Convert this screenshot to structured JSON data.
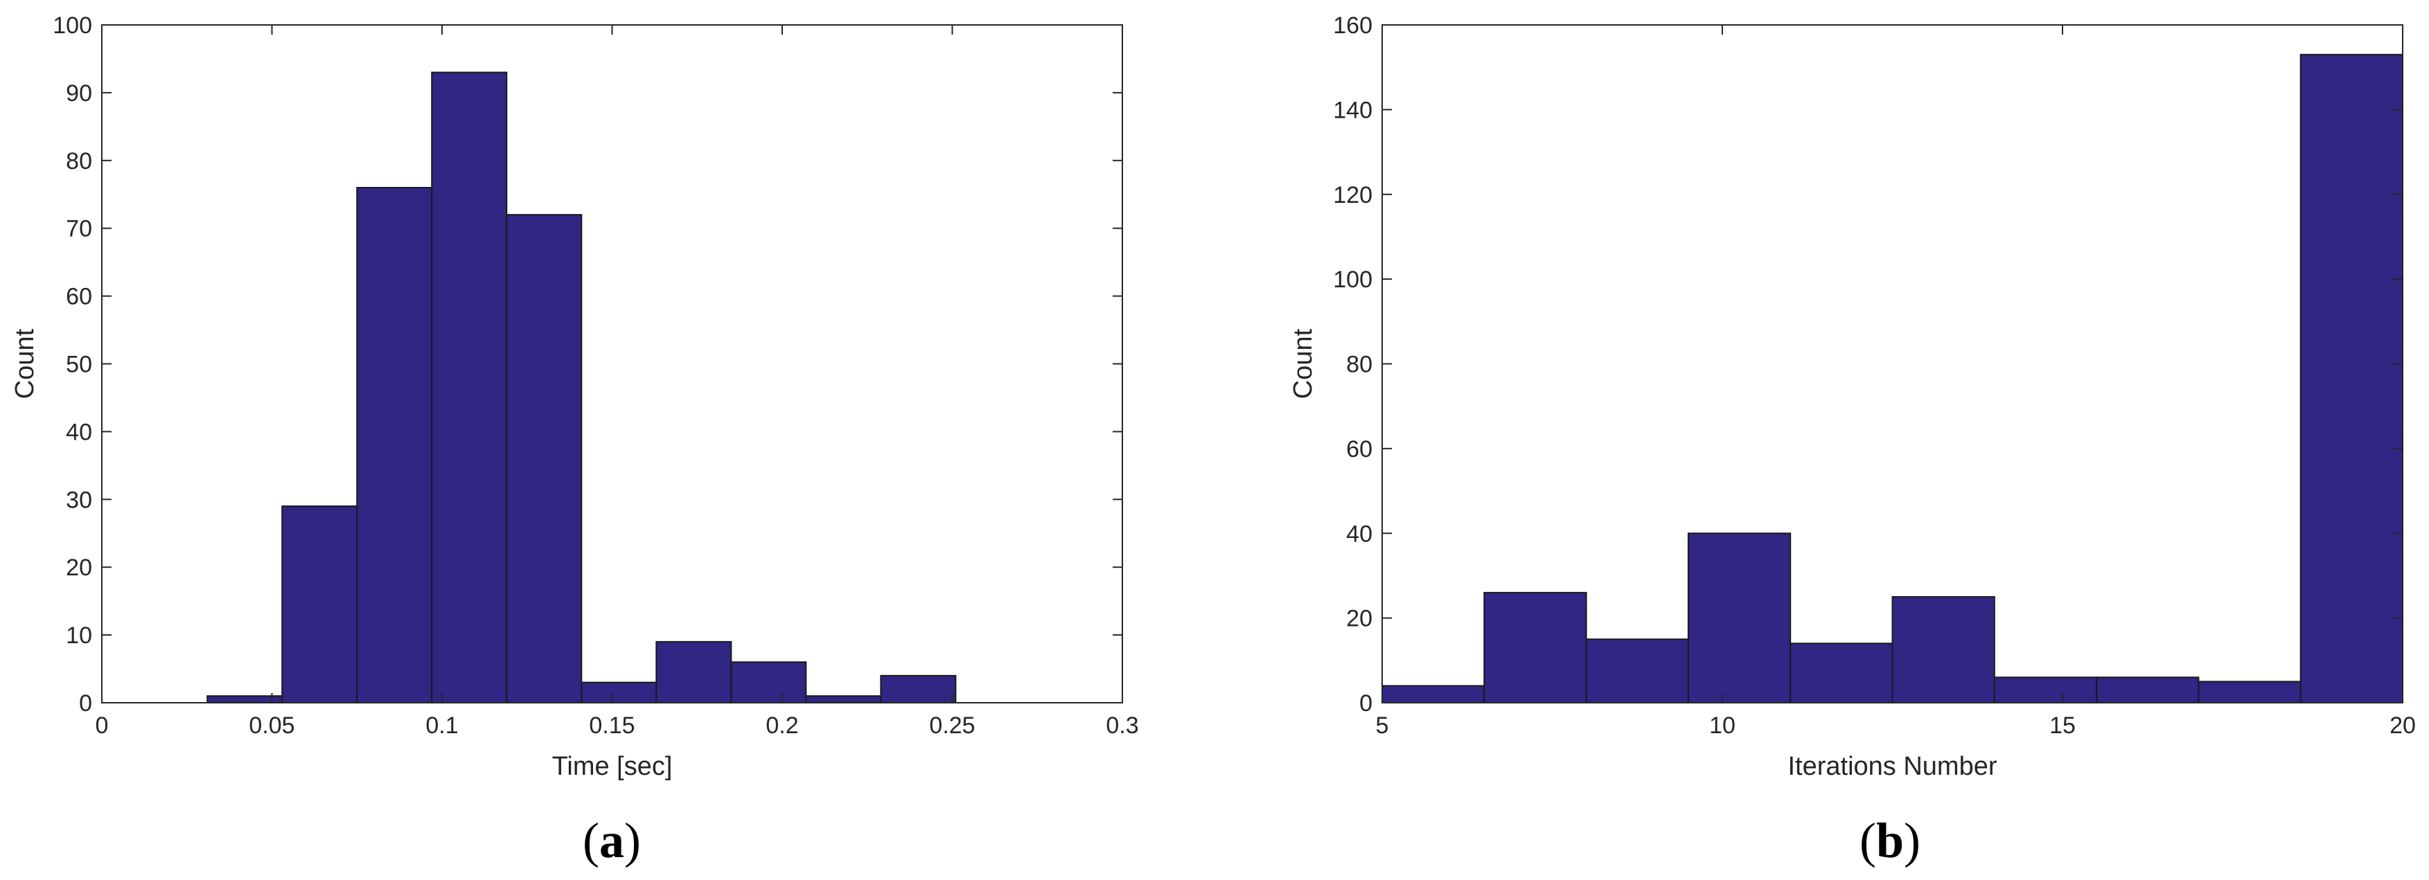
{
  "chart_data": [
    {
      "type": "bar",
      "panel": "a",
      "caption": "a",
      "xlabel": "Time [sec]",
      "ylabel": "Count",
      "xlim": [
        0,
        0.3
      ],
      "ylim": [
        0,
        100
      ],
      "xticks": [
        0,
        0.05,
        0.1,
        0.15,
        0.2,
        0.25,
        0.3
      ],
      "xtick_labels": [
        "0",
        "0.05",
        "0.1",
        "0.15",
        "0.2",
        "0.25",
        "0.3"
      ],
      "yticks": [
        0,
        10,
        20,
        30,
        40,
        50,
        60,
        70,
        80,
        90,
        100
      ],
      "ytick_labels": [
        "0",
        "10",
        "20",
        "30",
        "40",
        "50",
        "60",
        "70",
        "80",
        "90",
        "100"
      ],
      "bin_edges": [
        0.031,
        0.053,
        0.075,
        0.097,
        0.119,
        0.141,
        0.163,
        0.185,
        0.207,
        0.229,
        0.251
      ],
      "values": [
        1,
        29,
        76,
        93,
        72,
        3,
        9,
        6,
        1,
        4
      ],
      "bar_color": "#302683",
      "edge_color": "#1a1a1a",
      "grid": false
    },
    {
      "type": "bar",
      "panel": "b",
      "caption": "b",
      "xlabel": "Iterations Number",
      "ylabel": "Count",
      "xlim": [
        5,
        20
      ],
      "ylim": [
        0,
        160
      ],
      "xticks": [
        5,
        10,
        15,
        20
      ],
      "xtick_labels": [
        "5",
        "10",
        "15",
        "20"
      ],
      "yticks": [
        0,
        20,
        40,
        60,
        80,
        100,
        120,
        140,
        160
      ],
      "ytick_labels": [
        "0",
        "20",
        "40",
        "60",
        "80",
        "100",
        "120",
        "140",
        "160"
      ],
      "bin_edges": [
        5,
        6.5,
        8,
        9.5,
        11,
        12.5,
        14,
        15.5,
        17,
        18.5,
        20
      ],
      "values": [
        4,
        26,
        15,
        40,
        14,
        25,
        6,
        6,
        5,
        153
      ],
      "bar_color": "#302683",
      "edge_color": "#1a1a1a",
      "grid": false
    }
  ]
}
